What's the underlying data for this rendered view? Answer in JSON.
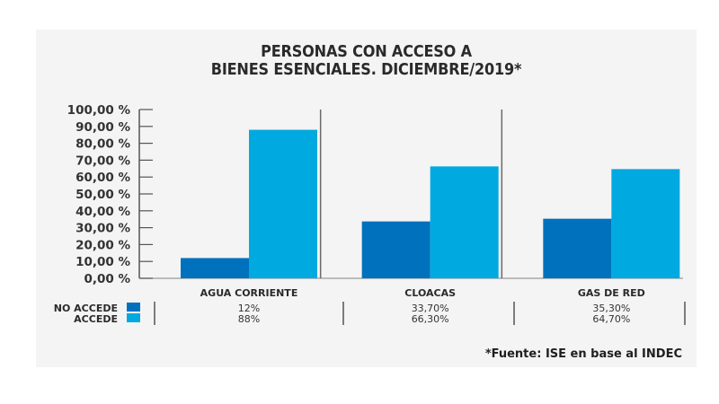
{
  "chart_data": {
    "type": "bar",
    "title_line1": "PERSONAS CON ACCESO A",
    "title_line2": "BIENES ESENCIALES. DICIEMBRE/2019*",
    "categories": [
      "AGUA CORRIENTE",
      "CLOACAS",
      "GAS DE RED"
    ],
    "series": [
      {
        "name": "NO ACCEDE",
        "color": "#0071bc",
        "values": [
          12,
          33.7,
          35.3
        ],
        "labels": [
          "12%",
          "33,70%",
          "35,30%"
        ]
      },
      {
        "name": "ACCEDE",
        "color": "#00a9e0",
        "values": [
          88,
          66.3,
          64.7
        ],
        "labels": [
          "88%",
          "66,30%",
          "64,70%"
        ]
      }
    ],
    "yticks": [
      0,
      10,
      20,
      30,
      40,
      50,
      60,
      70,
      80,
      90,
      100
    ],
    "ytick_labels": [
      "0,00 %",
      "10,00 %",
      "20,00 %",
      "30,00 %",
      "40,00 %",
      "50,00 %",
      "60,00 %",
      "70,00 %",
      "80,00 %",
      "90,00 %",
      "100,00 %"
    ],
    "ylim": [
      0,
      100
    ],
    "xlabel": "",
    "ylabel": "",
    "grid": false,
    "legend": "bottom-left table",
    "source": "*Fuente: ISE en base al INDEC"
  }
}
